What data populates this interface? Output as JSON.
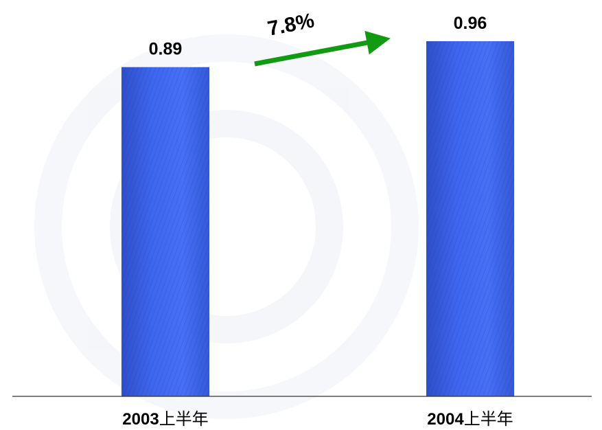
{
  "chart_data": {
    "type": "bar",
    "categories": [
      "2003上半年",
      "2004上半年"
    ],
    "category_parts": [
      {
        "year": "2003",
        "suffix": "上半年"
      },
      {
        "year": "2004",
        "suffix": "上半年"
      }
    ],
    "values": [
      0.89,
      0.96
    ],
    "value_labels": [
      "0.89",
      "0.96"
    ],
    "ylim": [
      0,
      0.96
    ],
    "grid": false,
    "bar_color": "#3366ff",
    "annotation": {
      "text": "7.8%",
      "arrow_color": "#139a13"
    }
  }
}
